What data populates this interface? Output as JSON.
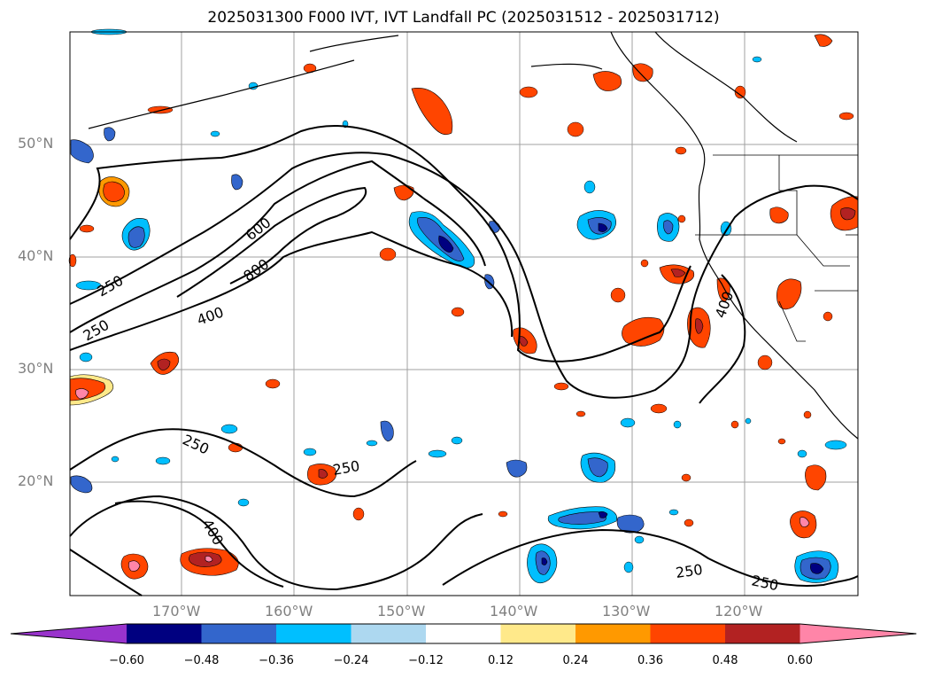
{
  "title": "2025031300 F000 IVT, IVT Landfall PC (2025031512 - 2025031712)",
  "lat_labels": [
    "50°N",
    "40°N",
    "30°N",
    "20°N"
  ],
  "lon_labels": [
    "170°W",
    "160°W",
    "150°W",
    "140°W",
    "130°W",
    "120°W"
  ],
  "contour_labels": [
    "250",
    "250",
    "600",
    "800",
    "400",
    "250",
    "250",
    "400",
    "400",
    "250",
    "250"
  ],
  "colorbar": {
    "ticks": [
      "−0.60",
      "−0.48",
      "−0.36",
      "−0.24",
      "−0.12",
      "0.12",
      "0.24",
      "0.36",
      "0.48",
      "0.60"
    ],
    "colors": [
      "#9933cc",
      "#000080",
      "#3366cc",
      "#00bfff",
      "#add8f0",
      "#ffffff",
      "#ffe98a",
      "#ff9900",
      "#ff4500",
      "#b22222",
      "#ff85a8"
    ]
  },
  "colors": {
    "contour": "#000000",
    "grid": "#808080",
    "coast": "#000000",
    "positive_outer": "#ffe98a",
    "positive_mid": "#ff9900",
    "positive_core": "#ff4500",
    "positive_max": "#b22222",
    "negative_outer": "#00bfff",
    "negative_mid": "#3366cc",
    "negative_core": "#000080"
  }
}
